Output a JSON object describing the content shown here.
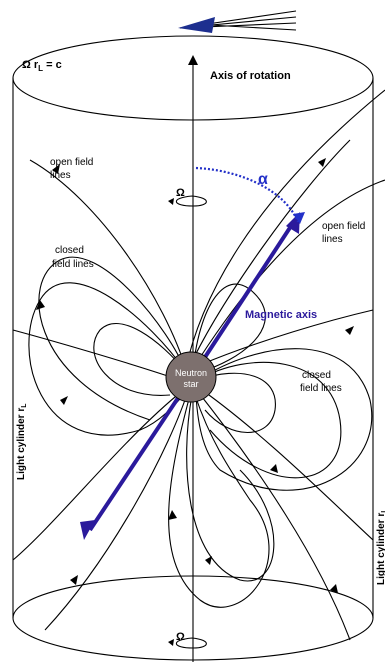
{
  "labels": {
    "light_cylinder_condition": "Ω r",
    "light_cylinder_condition_sub": "L",
    "light_cylinder_condition_tail": " = c",
    "axis_of_rotation": "Axis of rotation",
    "open_field_lines_left_1": "open field",
    "open_field_lines_left_2": "lines",
    "open_field_lines_right_1": "open field",
    "open_field_lines_right_2": "lines",
    "closed_field_lines_left_1": "closed",
    "closed_field_lines_left_2": "field lines",
    "closed_field_lines_right_1": "closed",
    "closed_field_lines_right_2": "field lines",
    "magnetic_axis": "Magnetic axis",
    "neutron_star_1": "Neutron",
    "neutron_star_2": "star",
    "omega_top": "Ω",
    "omega_bottom": "Ω",
    "alpha": "α",
    "light_cylinder_left": "Light cylinder r",
    "light_cylinder_left_sub": "L",
    "light_cylinder_right": "Light cylinder r",
    "light_cylinder_right_sub": "L"
  },
  "colors": {
    "magnetic_axis": "#2b1a9c",
    "alpha_arc": "#2330c8",
    "neutron_star": "#7d706e",
    "lines": "#000000"
  }
}
